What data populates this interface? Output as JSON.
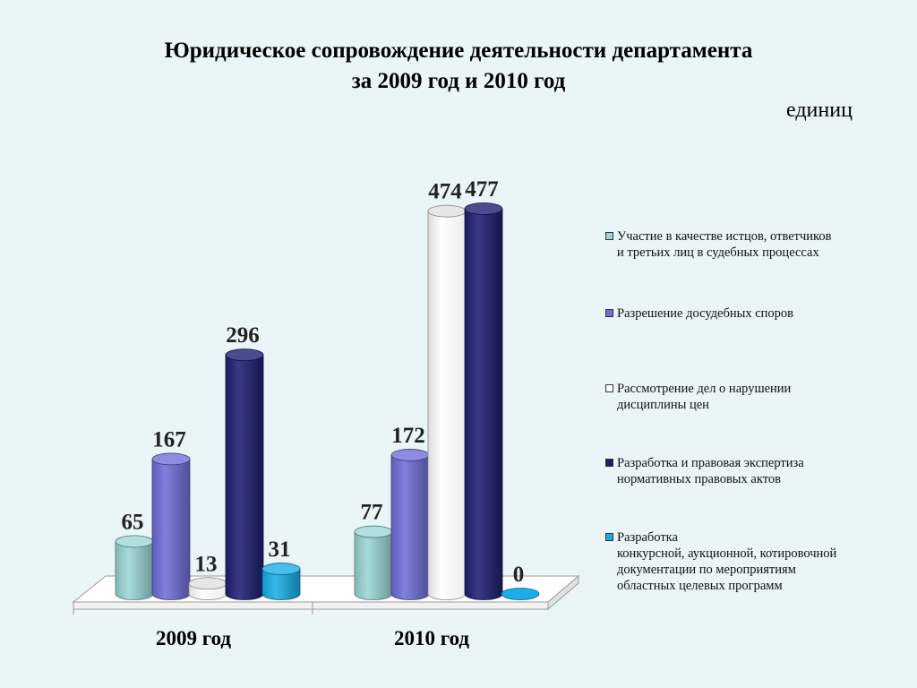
{
  "title": {
    "line1": "Юридическое сопровождение деятельности департамента",
    "line2": "за 2009 год и 2010 год"
  },
  "units": "единиц",
  "chart_data": {
    "type": "bar",
    "subtype": "3d-cylinder",
    "categories": [
      "2009 год",
      "2010 год"
    ],
    "series": [
      {
        "name": "Участие в качестве истцов, ответчиков и третьих лиц в судебных процессах",
        "color": "#9dd6d6",
        "values": [
          65,
          77
        ]
      },
      {
        "name": "Разрешение досудебных споров",
        "color": "#6f6fd8",
        "values": [
          167,
          172
        ]
      },
      {
        "name": "Рассмотрение дел о нарушении дисциплины цен",
        "color": "#ffffff",
        "values": [
          13,
          474
        ]
      },
      {
        "name": "Разработка и правовая экспертиза нормативных правовых актов",
        "color": "#1e1e74",
        "values": [
          296,
          477
        ]
      },
      {
        "name": "Разработка конкурсной, аукционной, котировочной документации по мероприятиям областных целевых программ",
        "color": "#19aee8",
        "values": [
          31,
          0
        ]
      }
    ],
    "ylim": [
      0,
      477
    ],
    "grid": false,
    "legend": "right"
  },
  "legend": {
    "items": [
      {
        "lines": [
          "Участие в качестве истцов, ответчиков",
          "и третьих лиц в судебных процессах"
        ]
      },
      {
        "lines": [
          "Разрешение досудебных споров"
        ]
      },
      {
        "lines": [
          "Рассмотрение дел о нарушении",
          "дисциплины цен"
        ]
      },
      {
        "lines": [
          "Разработка и правовая экспертиза",
          "нормативных правовых актов"
        ]
      },
      {
        "lines": [
          "Разработка",
          "конкурсной, аукционной, котировочной",
          "документации по мероприятиям",
          "областных целевых программ"
        ]
      }
    ]
  }
}
